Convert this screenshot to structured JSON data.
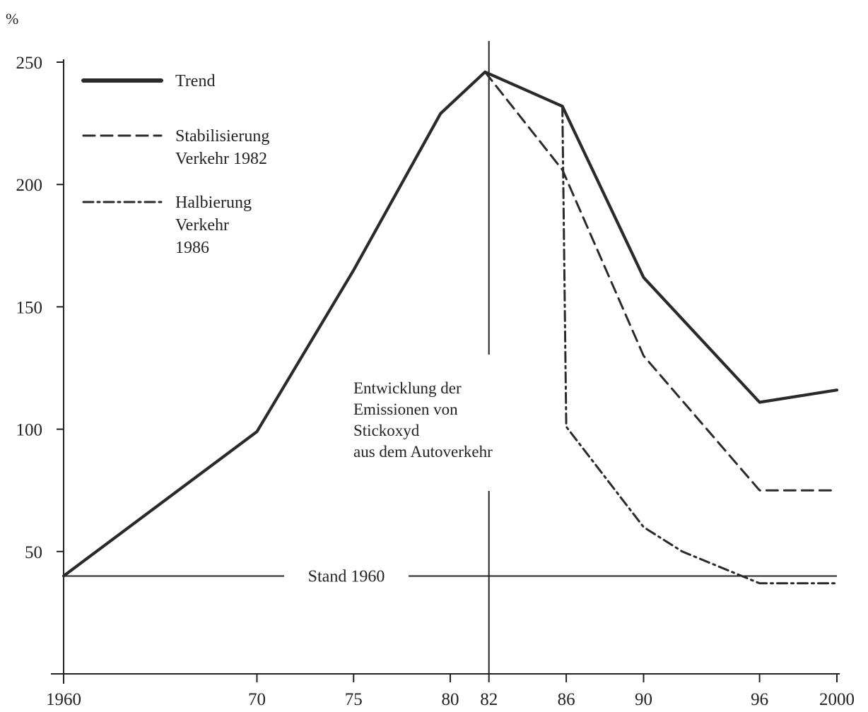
{
  "chart_data": {
    "type": "line",
    "title": "",
    "xlabel": "",
    "ylabel": "%",
    "xlim": [
      1960,
      2000
    ],
    "ylim": [
      0,
      250
    ],
    "x_ticks": [
      1960,
      1970,
      1975,
      1980,
      1982,
      1986,
      1990,
      1996,
      2000
    ],
    "x_tick_labels": [
      "1960",
      "70",
      "75",
      "80",
      "82",
      "86",
      "90",
      "96",
      "2000"
    ],
    "y_ticks": [
      50,
      100,
      150,
      200,
      250
    ],
    "y_tick_labels": [
      "50",
      "100",
      "150",
      "200",
      "250"
    ],
    "grid": false,
    "legend_position": "top-left",
    "series": [
      {
        "name": "Trend",
        "style": "solid",
        "x": [
          1960,
          1970,
          1975,
          1979.5,
          1981.8,
          1985.8,
          1990,
          1996,
          2000
        ],
        "y": [
          40,
          99,
          165,
          229,
          246,
          232,
          162,
          111,
          116
        ]
      },
      {
        "name": "Stabilisierung Verkehr 1982",
        "style": "dashed",
        "x": [
          1981.8,
          1985.8,
          1990,
          1996,
          2000
        ],
        "y": [
          246,
          206,
          130,
          75,
          75
        ]
      },
      {
        "name": "Halbierung Verkehr 1986",
        "style": "dashdot",
        "x": [
          1985.8,
          1986,
          1990,
          1992,
          1996,
          2000
        ],
        "y": [
          232,
          101,
          60,
          50,
          37,
          37
        ]
      }
    ],
    "legend": [
      {
        "lines": [
          "Trend"
        ],
        "style": "solid"
      },
      {
        "lines": [
          "Stabilisierung",
          "Verkehr 1982"
        ],
        "style": "dashed"
      },
      {
        "lines": [
          "Halbierung",
          "Verkehr",
          "1986"
        ],
        "style": "dashdot"
      }
    ],
    "reference_line": {
      "label": "Stand 1960",
      "y": 40
    },
    "annotation": {
      "lines": [
        "Entwicklung der",
        "Emissionen von",
        "Stickoxyd",
        "aus dem Autoverkehr"
      ]
    }
  }
}
